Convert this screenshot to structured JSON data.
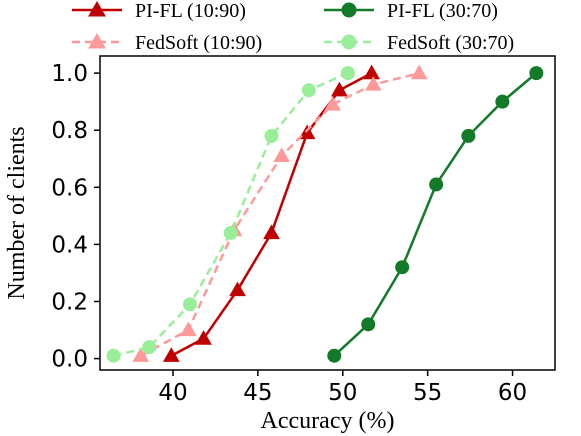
{
  "chart_data": {
    "type": "line",
    "xlabel": "Accuracy (%)",
    "ylabel": "Number of clients",
    "xlim": [
      35.7,
      62.5
    ],
    "ylim": [
      -0.04,
      1.06
    ],
    "x_ticks": [
      40,
      45,
      50,
      55,
      60
    ],
    "x_tick_labels": [
      "40",
      "45",
      "50",
      "55",
      "60"
    ],
    "y_ticks": [
      0.0,
      0.2,
      0.4,
      0.6,
      0.8,
      1.0
    ],
    "y_tick_labels": [
      "0.0",
      "0.2",
      "0.4",
      "0.6",
      "0.8",
      "1.0"
    ],
    "grid": false,
    "legend_position": "top",
    "series": [
      {
        "name": "PI-FL (10:90)",
        "color": "#c00000",
        "dashed": false,
        "marker": "triangle",
        "x": [
          39.9,
          41.8,
          43.8,
          45.8,
          47.9,
          49.8,
          51.7
        ],
        "y": [
          0.01,
          0.07,
          0.24,
          0.44,
          0.79,
          0.94,
          1.0
        ]
      },
      {
        "name": "FedSoft (10:90)",
        "color": "#ff9999",
        "dashed": true,
        "marker": "triangle",
        "x": [
          38.1,
          40.9,
          43.6,
          46.4,
          49.4,
          51.8,
          54.5
        ],
        "y": [
          0.01,
          0.1,
          0.45,
          0.71,
          0.89,
          0.96,
          1.0
        ]
      },
      {
        "name": "PI-FL (30:70)",
        "color": "#127a28",
        "dashed": false,
        "marker": "circle",
        "x": [
          49.5,
          51.5,
          53.5,
          55.5,
          57.4,
          59.4,
          61.4
        ],
        "y": [
          0.01,
          0.12,
          0.32,
          0.61,
          0.78,
          0.9,
          1.0
        ]
      },
      {
        "name": "FedSoft (30:70)",
        "color": "#99ee99",
        "dashed": true,
        "marker": "circle",
        "x": [
          36.5,
          38.6,
          41.0,
          43.4,
          45.8,
          48.0,
          50.3
        ],
        "y": [
          0.01,
          0.04,
          0.19,
          0.44,
          0.78,
          0.94,
          1.0
        ]
      }
    ]
  }
}
